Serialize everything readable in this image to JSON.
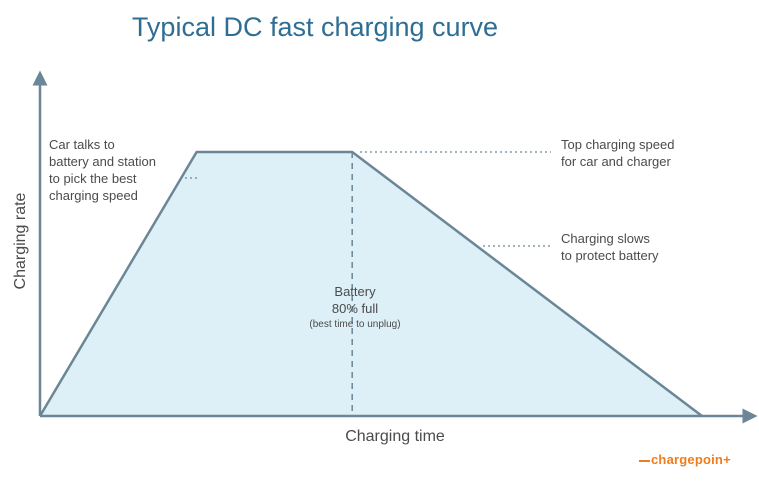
{
  "chart_data": {
    "type": "area",
    "title": "Typical DC fast charging curve",
    "xlabel": "Charging time",
    "ylabel": "Charging rate",
    "series": [
      {
        "x": [
          0,
          0.2365,
          0.4716,
          1.0
        ],
        "y": [
          0,
          1,
          1,
          0
        ]
      }
    ],
    "xlim": [
      0,
      1
    ],
    "ylim": [
      0,
      1
    ],
    "grid": false,
    "annotations": {
      "left": [
        "Car talks to",
        "battery and station",
        "to pick the best",
        "charging speed"
      ],
      "top_right": [
        "Top charging speed",
        "for car and charger"
      ],
      "mid_right": [
        "Charging slows",
        "to protect battery"
      ],
      "battery_line1": "Battery",
      "battery_line2": "80% full",
      "battery_note": "(best time to unplug)"
    },
    "colors": {
      "fill": "#ddf0f7",
      "line": "#6b8696",
      "axis": "#6b8696",
      "title": "#2e6e93",
      "text": "#4b4b4b"
    }
  },
  "brand": {
    "logo": "chargepoin+"
  }
}
